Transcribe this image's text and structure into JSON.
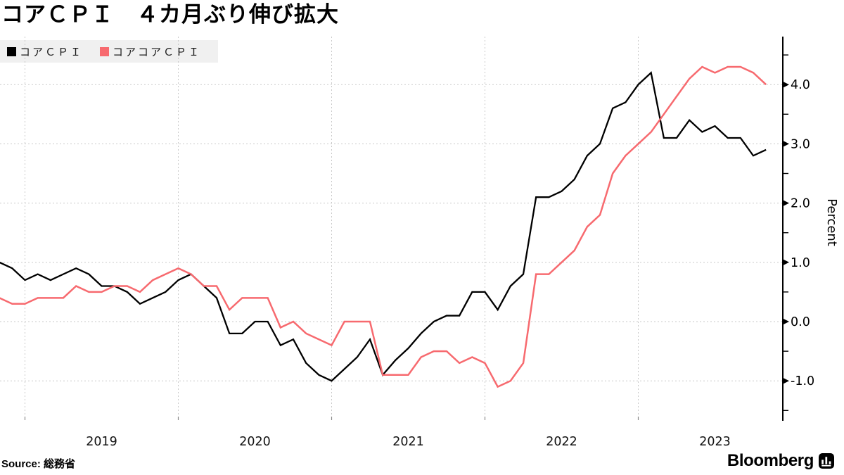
{
  "title": "コアＣＰＩ　４カ月ぶり伸び拡大",
  "legend": [
    {
      "label": "コアＣＰＩ",
      "color": "#000000"
    },
    {
      "label": "コアコアＣＰＩ",
      "color": "#f76a6f"
    }
  ],
  "source": {
    "prefix": "Source:",
    "name": "総務省"
  },
  "brand": {
    "name": "Bloomberg",
    "icon": "bloomberg-terminal-icon"
  },
  "colors": {
    "core_cpi_line": "#000000",
    "core_core_cpi_line": "#f76a6f",
    "gridline": "#c9c9c9",
    "legend_background": "#f0f0f0",
    "axis": "#000000"
  },
  "chart_data": {
    "type": "line",
    "title": "コアＣＰＩ　４カ月ぶり伸び拡大",
    "ylabel": "Percent",
    "xlabel": "",
    "grid": true,
    "legend_position": "top-left",
    "ylim": [
      -1.6,
      4.8
    ],
    "y_major_ticks": [
      "4.0",
      "3.0",
      "2.0",
      "1.0",
      "0.0",
      "-1.0"
    ],
    "y_minor_ticks": [
      4.5,
      3.5,
      2.5,
      1.5,
      0.5,
      -0.5,
      -1.5
    ],
    "x_tick_years": [
      "2019",
      "2020",
      "2021",
      "2022",
      "2023"
    ],
    "x": [
      "2018-10",
      "2018-11",
      "2018-12",
      "2019-01",
      "2019-02",
      "2019-03",
      "2019-04",
      "2019-05",
      "2019-06",
      "2019-07",
      "2019-08",
      "2019-09",
      "2019-10",
      "2019-11",
      "2019-12",
      "2020-01",
      "2020-02",
      "2020-03",
      "2020-04",
      "2020-05",
      "2020-06",
      "2020-07",
      "2020-08",
      "2020-09",
      "2020-10",
      "2020-11",
      "2020-12",
      "2021-01",
      "2021-02",
      "2021-03",
      "2021-04",
      "2021-05",
      "2021-06",
      "2021-07",
      "2021-08",
      "2021-09",
      "2021-10",
      "2021-11",
      "2021-12",
      "2022-01",
      "2022-02",
      "2022-03",
      "2022-04",
      "2022-05",
      "2022-06",
      "2022-07",
      "2022-08",
      "2022-09",
      "2022-10",
      "2022-11",
      "2022-12",
      "2023-01",
      "2023-02",
      "2023-03",
      "2023-04",
      "2023-05",
      "2023-06",
      "2023-07",
      "2023-08",
      "2023-09",
      "2023-10"
    ],
    "series": [
      {
        "name": "コアＣＰＩ",
        "color": "#000000",
        "values": [
          1.0,
          0.9,
          0.7,
          0.8,
          0.7,
          0.8,
          0.9,
          0.8,
          0.6,
          0.6,
          0.5,
          0.3,
          0.4,
          0.5,
          0.7,
          0.8,
          0.6,
          0.4,
          -0.2,
          -0.2,
          0.0,
          0.0,
          -0.4,
          -0.3,
          -0.7,
          -0.9,
          -1.0,
          -0.8,
          -0.6,
          -0.3,
          -0.9,
          -0.65,
          -0.45,
          -0.2,
          0.0,
          0.1,
          0.1,
          0.5,
          0.5,
          0.2,
          0.6,
          0.8,
          2.1,
          2.1,
          2.2,
          2.4,
          2.8,
          3.0,
          3.6,
          3.7,
          4.0,
          4.2,
          3.1,
          3.1,
          3.4,
          3.2,
          3.3,
          3.1,
          3.1,
          2.8,
          2.9
        ]
      },
      {
        "name": "コアコアＣＰＩ",
        "color": "#f76a6f",
        "values": [
          0.4,
          0.3,
          0.3,
          0.4,
          0.4,
          0.4,
          0.6,
          0.5,
          0.5,
          0.6,
          0.6,
          0.5,
          0.7,
          0.8,
          0.9,
          0.8,
          0.6,
          0.6,
          0.2,
          0.4,
          0.4,
          0.4,
          -0.1,
          0.0,
          -0.2,
          -0.3,
          -0.4,
          0.0,
          0.0,
          0.0,
          -0.9,
          -0.9,
          -0.9,
          -0.6,
          -0.5,
          -0.5,
          -0.7,
          -0.6,
          -0.7,
          -1.1,
          -1.0,
          -0.7,
          0.8,
          0.8,
          1.0,
          1.2,
          1.6,
          1.8,
          2.5,
          2.8,
          3.0,
          3.2,
          3.5,
          3.8,
          4.1,
          4.3,
          4.2,
          4.3,
          4.3,
          4.2,
          4.0
        ]
      }
    ]
  }
}
